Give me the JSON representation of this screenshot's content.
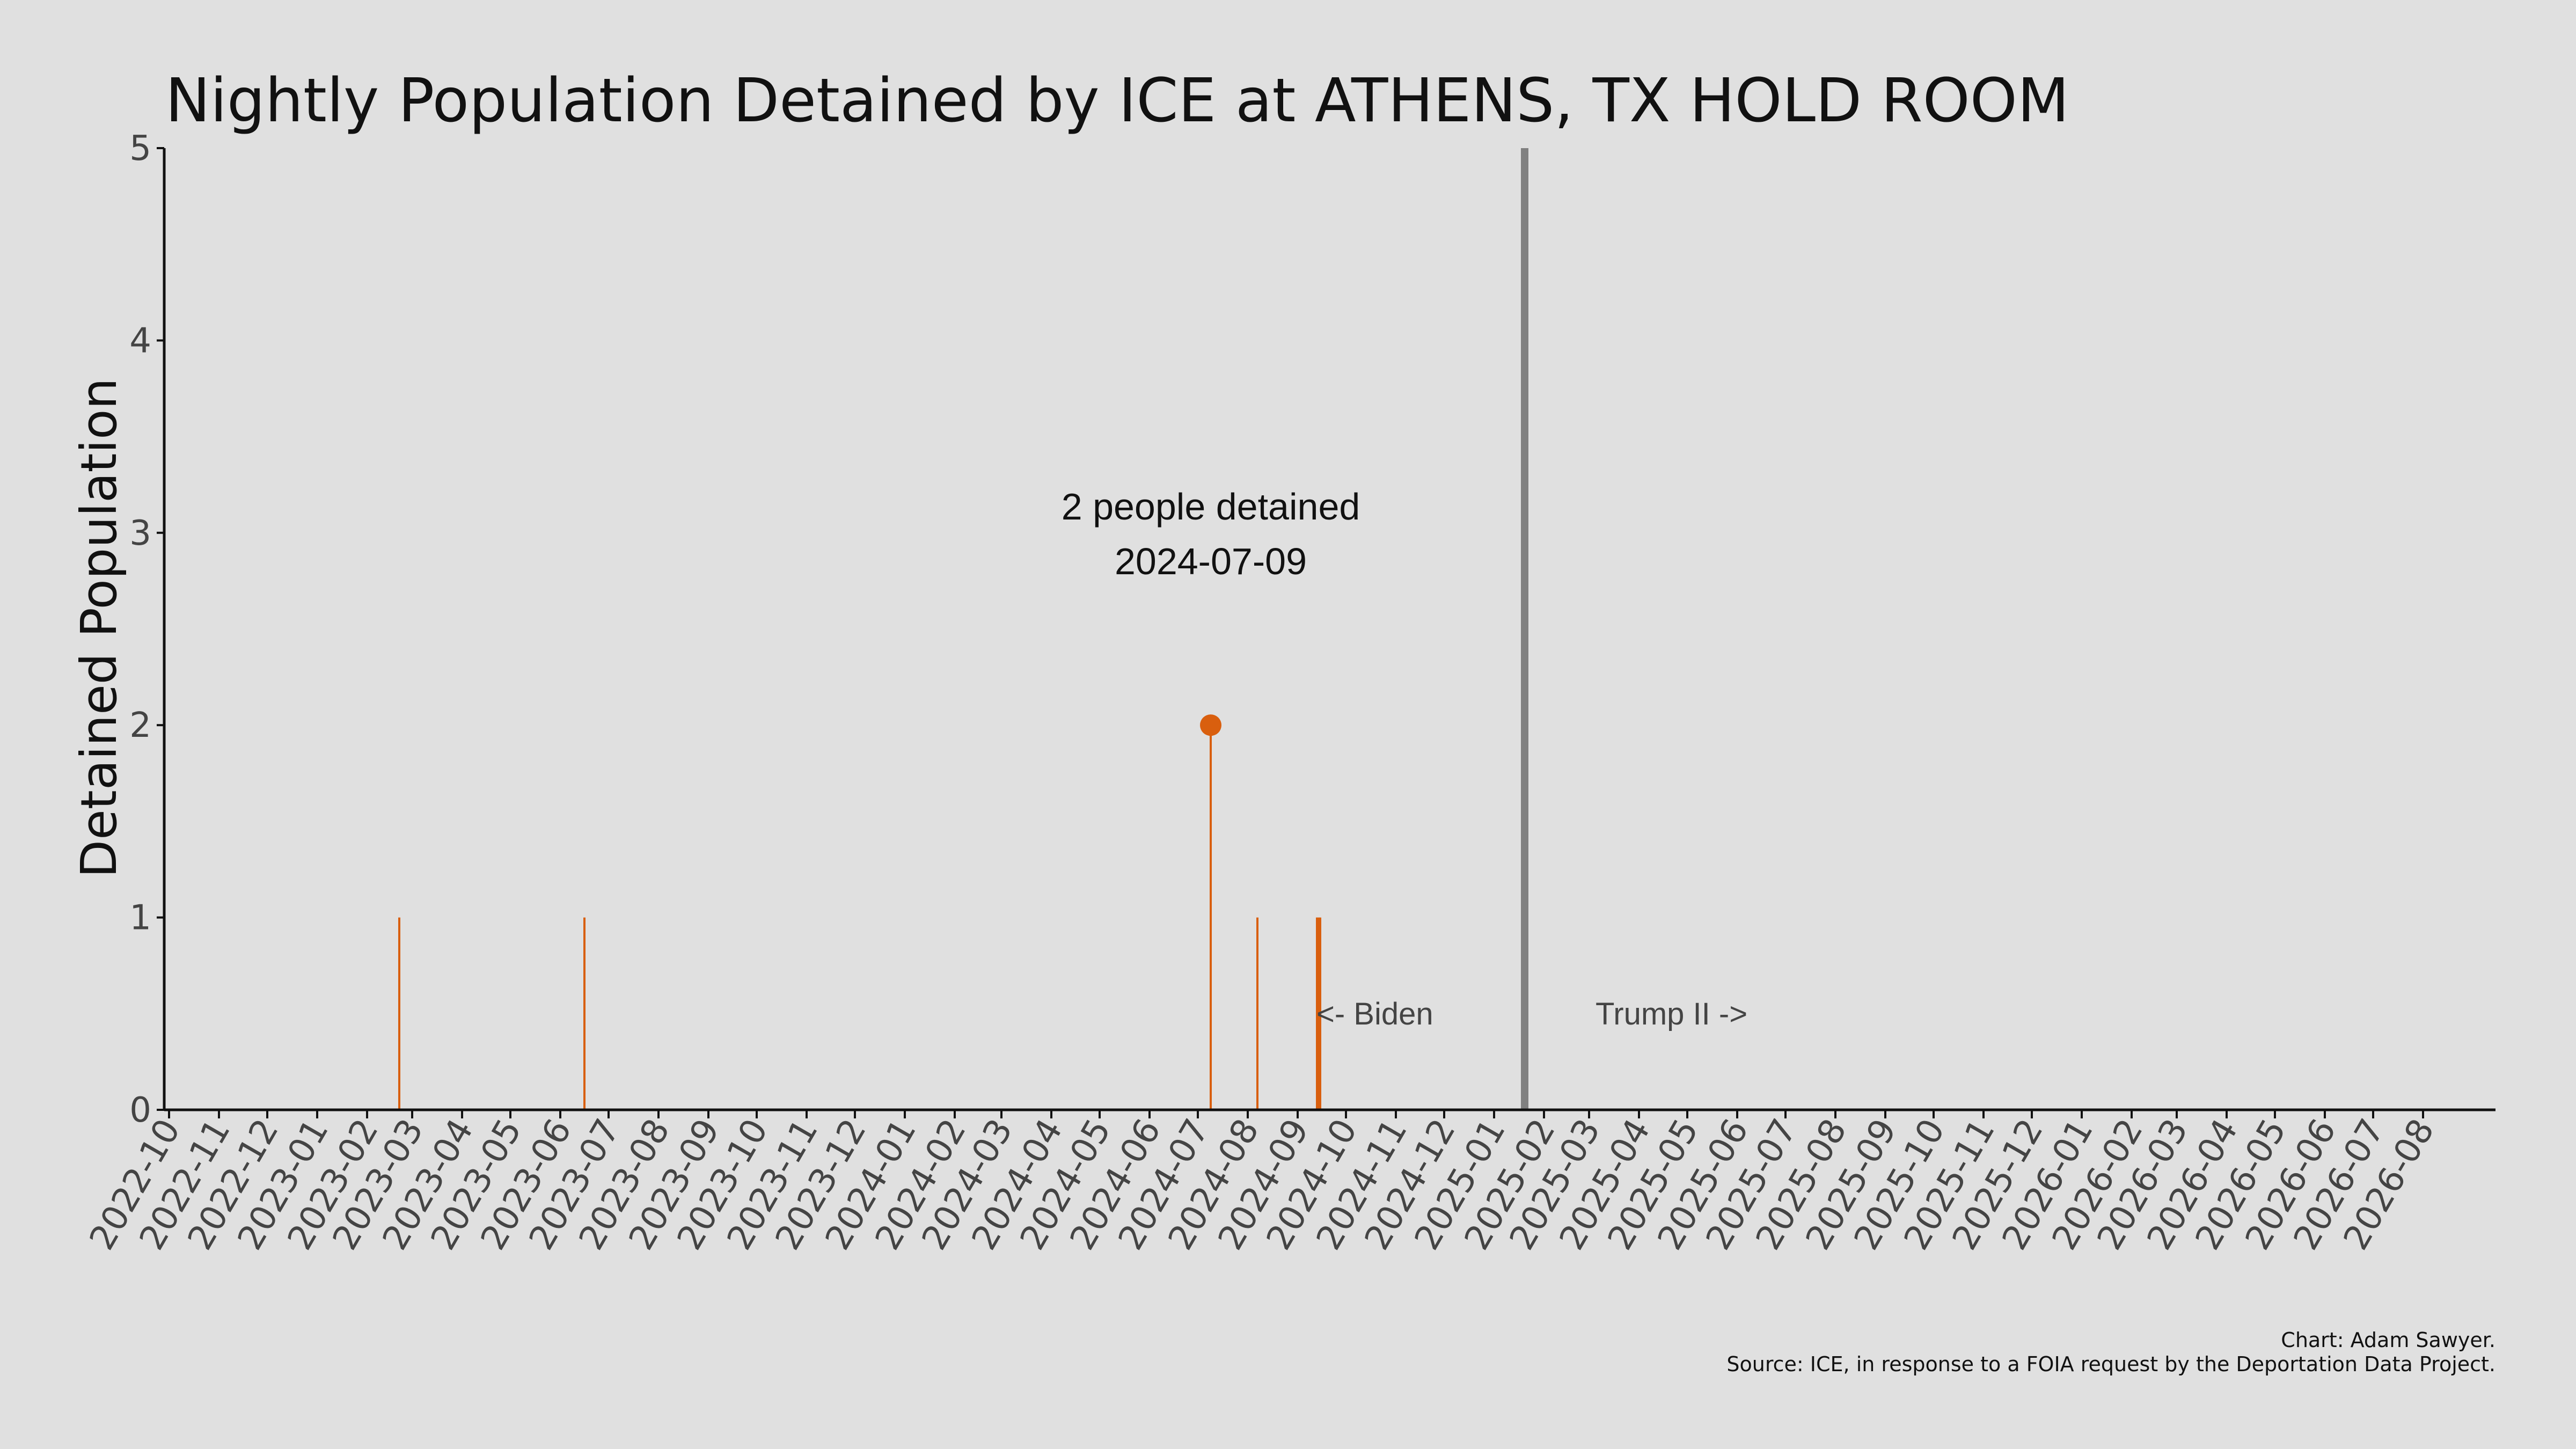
{
  "chart_data": {
    "type": "bar",
    "title": "Nightly Population Detained by ICE at ATHENS, TX HOLD ROOM",
    "ylabel": "Detained Population",
    "xlabel": "",
    "ylim": [
      0,
      5
    ],
    "yticks": [
      0,
      1,
      2,
      3,
      4,
      5
    ],
    "x_ticks": [
      "2022-10",
      "2022-11",
      "2022-12",
      "2023-01",
      "2023-02",
      "2023-03",
      "2023-04",
      "2023-05",
      "2023-06",
      "2023-07",
      "2023-08",
      "2023-09",
      "2023-10",
      "2023-11",
      "2023-12",
      "2024-01",
      "2024-02",
      "2024-03",
      "2024-04",
      "2024-05",
      "2024-06",
      "2024-07",
      "2024-08",
      "2024-09",
      "2024-10",
      "2024-11",
      "2024-12",
      "2025-01",
      "2025-02",
      "2025-03",
      "2025-04",
      "2025-05",
      "2025-06",
      "2025-07",
      "2025-08",
      "2025-09",
      "2025-10",
      "2025-11",
      "2025-12",
      "2026-01",
      "2026-02",
      "2026-03",
      "2026-04",
      "2026-05",
      "2026-06",
      "2026-07",
      "2026-08"
    ],
    "series": [
      {
        "color": "#d95f0e",
        "points": [
          {
            "date": "2023-02-21",
            "value": 1
          },
          {
            "date": "2023-06-16",
            "value": 1
          },
          {
            "date": "2024-07-09",
            "value": 2
          },
          {
            "date": "2024-08-07",
            "value": 1
          },
          {
            "date": "2024-09-13",
            "value": 1
          },
          {
            "date": "2024-09-14",
            "value": 1
          },
          {
            "date": "2024-09-15",
            "value": 1
          }
        ]
      }
    ],
    "highlight": {
      "date": "2024-07-09",
      "value": 2,
      "label_line1": "2 people detained",
      "label_line2": "2024-07-09"
    },
    "divider": {
      "date": "2025-01-20",
      "color": "#808080",
      "left_label": "<- Biden",
      "right_label": "Trump II ->"
    },
    "grid": false
  },
  "credits": {
    "line1": "Chart: Adam Sawyer.",
    "line2": "Source: ICE, in response to a FOIA request by the Deportation Data Project."
  }
}
